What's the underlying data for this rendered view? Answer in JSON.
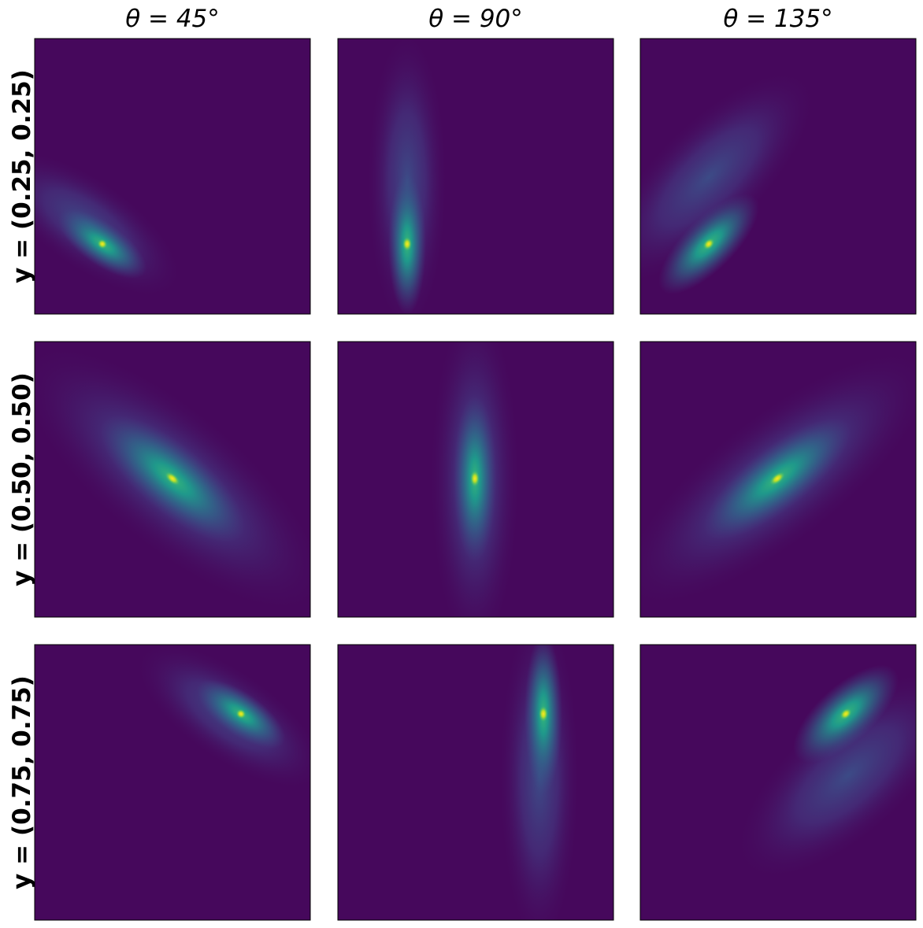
{
  "figure": {
    "columns": [
      {
        "title": "θ = 45°"
      },
      {
        "title": "θ = 90°"
      },
      {
        "title": "θ = 135°"
      }
    ],
    "rows": [
      {
        "label": "y = (0.25, 0.25)"
      },
      {
        "label": "y = (0.50, 0.50)"
      },
      {
        "label": "y = (0.75, 0.75)"
      }
    ]
  }
}
